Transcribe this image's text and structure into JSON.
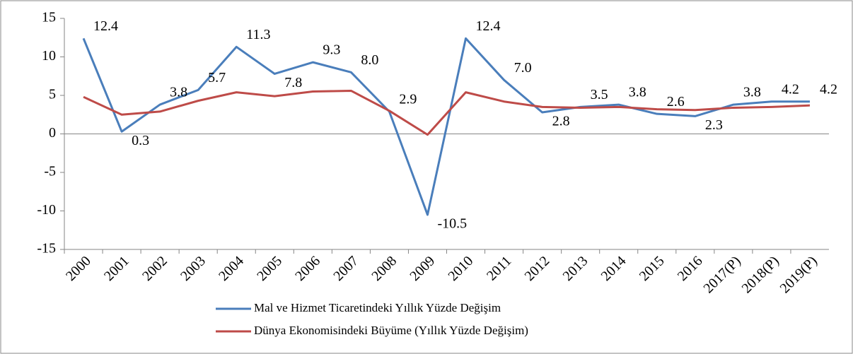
{
  "chart_data": {
    "type": "line",
    "categories": [
      "2000",
      "2001",
      "2002",
      "2003",
      "2004",
      "2005",
      "2006",
      "2007",
      "2008",
      "2009",
      "2010",
      "2011",
      "2012",
      "2013",
      "2014",
      "2015",
      "2016",
      "2017(P)",
      "2018(P)",
      "2019(P)"
    ],
    "series": [
      {
        "name": "Mal ve Hizmet Ticaretindeki Yıllık Yüzde Değişim",
        "color": "#4a7ebb",
        "values": [
          12.4,
          0.3,
          3.8,
          5.7,
          11.3,
          7.8,
          9.3,
          8.0,
          2.9,
          -10.5,
          12.4,
          7.0,
          2.8,
          3.5,
          3.8,
          2.6,
          2.3,
          3.8,
          4.2,
          4.2
        ],
        "value_labels": [
          "12.4",
          "0.3",
          "3.8",
          "5.7",
          "11.3",
          "7.8",
          "9.3",
          "8.0",
          "2.9",
          "-10.5",
          "12.4",
          "7.0",
          "2.8",
          "3.5",
          "3.8",
          "2.6",
          "2.3",
          "3.8",
          "4.2",
          "4.2"
        ]
      },
      {
        "name": "Dünya Ekonomisindeki Büyüme (Yıllık Yüzde Değişim)",
        "color": "#be4b48",
        "values": [
          4.8,
          2.5,
          2.9,
          4.3,
          5.4,
          4.9,
          5.5,
          5.6,
          3.0,
          -0.1,
          5.4,
          4.2,
          3.5,
          3.4,
          3.5,
          3.2,
          3.1,
          3.4,
          3.5,
          3.7
        ]
      }
    ],
    "ylim": [
      -15,
      15
    ],
    "yticks": [
      -15,
      -10,
      -5,
      0,
      5,
      10,
      15
    ],
    "legend": "bottom"
  }
}
